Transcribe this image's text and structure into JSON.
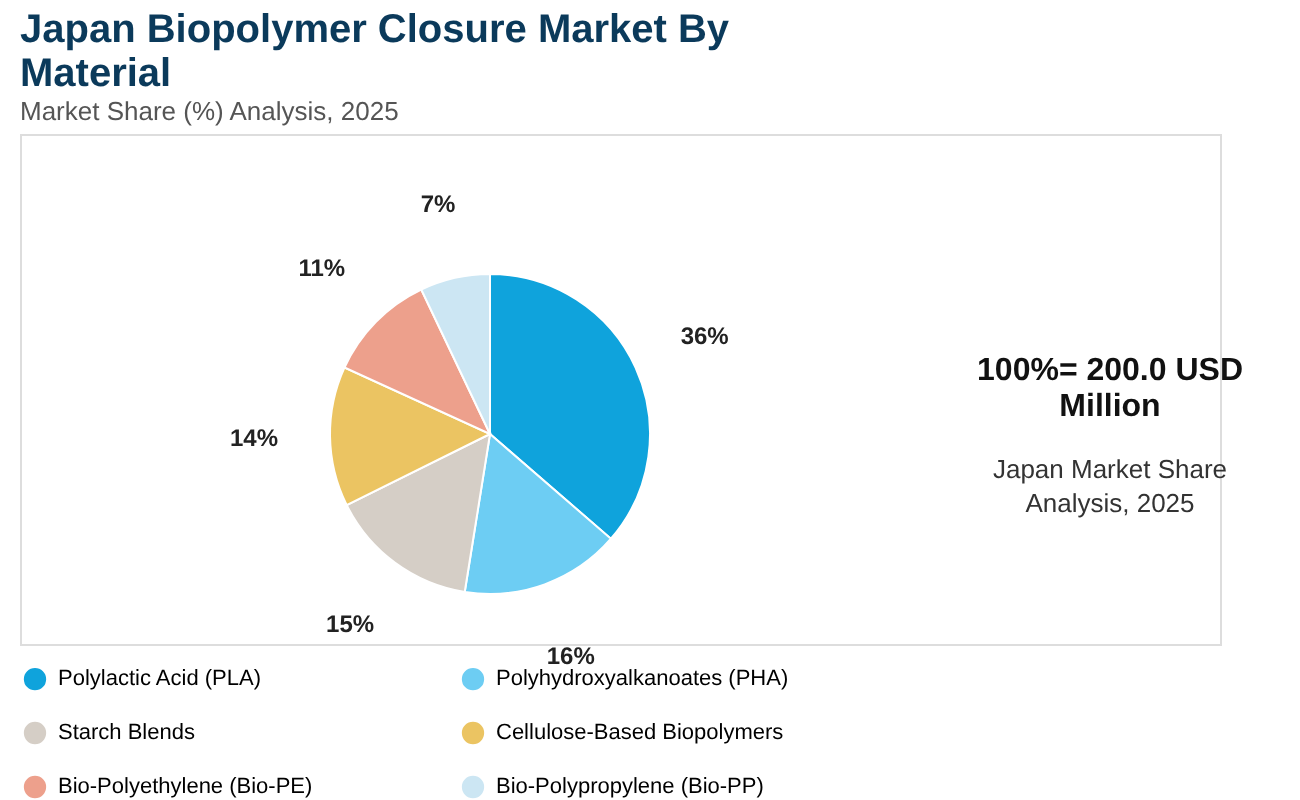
{
  "chart_data": {
    "type": "pie",
    "title": "Japan Biopolymer Closure Market By Material",
    "subtitle": "Market Share (%) Analysis, 2025",
    "categories": [
      "Polylactic Acid (PLA)",
      "Polyhydroxyalkanoates (PHA)",
      "Starch Blends",
      "Cellulose-Based Biopolymers",
      "Bio-Polyethylene (Bio-PE)",
      "Bio-Polypropylene (Bio-PP)"
    ],
    "values": [
      36,
      16,
      15,
      14,
      11,
      7
    ],
    "colors": [
      "#0fa3dc",
      "#6dcdf3",
      "#d5cec6",
      "#ebc462",
      "#eda08c",
      "#cce6f3"
    ],
    "value_labels": [
      "36%",
      "16%",
      "15%",
      "14%",
      "11%",
      "7%"
    ],
    "legend": "bottom",
    "annotations": [
      "100%= 200.0 USD Million",
      "Japan Market Share Analysis, 2025"
    ]
  }
}
